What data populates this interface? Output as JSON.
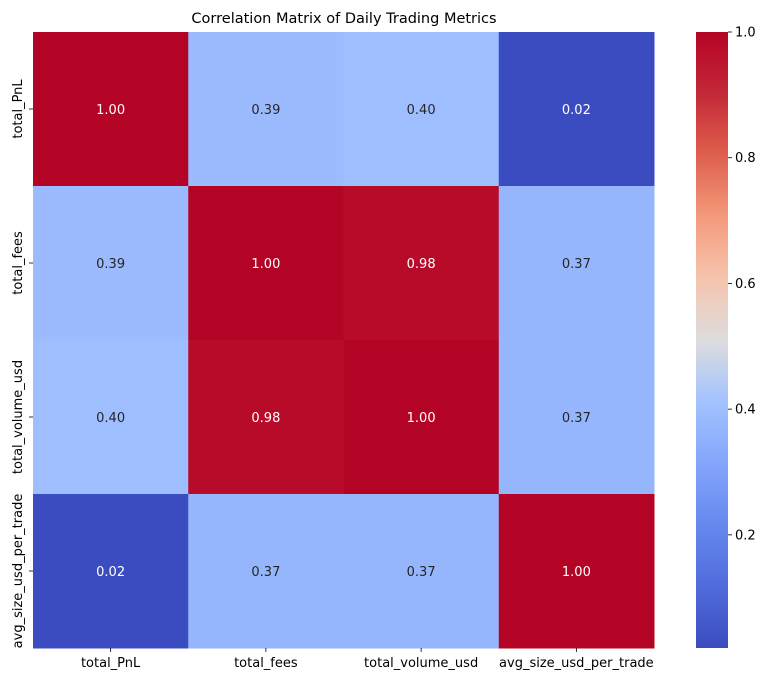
{
  "chart_data": {
    "type": "heatmap",
    "title": "Correlation Matrix of Daily Trading Metrics",
    "x_categories": [
      "total_PnL",
      "total_fees",
      "total_volume_usd",
      "avg_size_usd_per_trade"
    ],
    "y_categories": [
      "total_PnL",
      "total_fees",
      "total_volume_usd",
      "avg_size_usd_per_trade"
    ],
    "values": [
      [
        1.0,
        0.39,
        0.4,
        0.02
      ],
      [
        0.39,
        1.0,
        0.98,
        0.37
      ],
      [
        0.4,
        0.98,
        1.0,
        0.37
      ],
      [
        0.02,
        0.37,
        0.37,
        1.0
      ]
    ],
    "value_labels": [
      [
        "1.00",
        "0.39",
        "0.40",
        "0.02"
      ],
      [
        "0.39",
        "1.00",
        "0.98",
        "0.37"
      ],
      [
        "0.40",
        "0.98",
        "1.00",
        "0.37"
      ],
      [
        "0.02",
        "0.37",
        "0.37",
        "1.00"
      ]
    ],
    "colormap": "coolwarm",
    "colorbar": {
      "range": [
        0.02,
        1.0
      ],
      "ticks": [
        0.2,
        0.4,
        0.6,
        0.8,
        1.0
      ],
      "tick_labels": [
        "0.2",
        "0.4",
        "0.6",
        "0.8",
        "1.0"
      ],
      "placement": "right"
    }
  }
}
